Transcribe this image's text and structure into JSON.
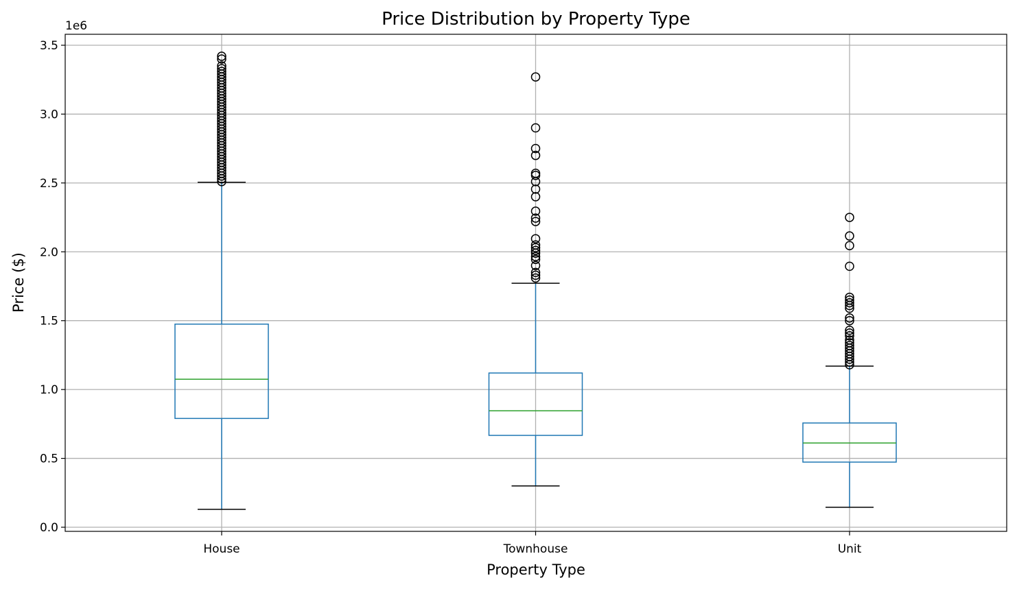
{
  "chart_data": {
    "type": "box",
    "title": "Price Distribution by Property Type",
    "xlabel": "Property Type",
    "ylabel": "Price ($)",
    "y_offset_label": "1e6",
    "ylim": [
      -0.03,
      3.58
    ],
    "yticks": [
      0.0,
      0.5,
      1.0,
      1.5,
      2.0,
      2.5,
      3.0,
      3.5
    ],
    "ytick_labels": [
      "0.0",
      "0.5",
      "1.0",
      "1.5",
      "2.0",
      "2.5",
      "3.0",
      "3.5"
    ],
    "grid": true,
    "colors": {
      "box": "#1f77b4",
      "median": "#2ca02c",
      "caps": "#000000",
      "outliers": "#000000",
      "grid": "#b0b0b0"
    },
    "categories": [
      "House",
      "Townhouse",
      "Unit"
    ],
    "boxes": [
      {
        "category": "House",
        "whisker_low": 0.13,
        "q1": 0.79,
        "median": 1.075,
        "q3": 1.475,
        "whisker_high": 2.505,
        "outliers": [
          2.51,
          2.53,
          2.55,
          2.57,
          2.59,
          2.61,
          2.63,
          2.65,
          2.67,
          2.69,
          2.71,
          2.73,
          2.75,
          2.77,
          2.79,
          2.81,
          2.83,
          2.85,
          2.87,
          2.89,
          2.91,
          2.93,
          2.95,
          2.97,
          2.99,
          3.01,
          3.03,
          3.05,
          3.07,
          3.09,
          3.11,
          3.13,
          3.15,
          3.17,
          3.19,
          3.21,
          3.23,
          3.25,
          3.27,
          3.29,
          3.31,
          3.33,
          3.35,
          3.4,
          3.42
        ]
      },
      {
        "category": "Townhouse",
        "whisker_low": 0.3,
        "q1": 0.667,
        "median": 0.846,
        "q3": 1.12,
        "whisker_high": 1.772,
        "outliers": [
          3.27,
          2.9,
          2.75,
          2.7,
          2.57,
          2.555,
          2.51,
          2.455,
          2.4,
          2.295,
          2.245,
          2.22,
          2.095,
          2.05,
          2.03,
          2.01,
          1.99,
          1.965,
          1.945,
          1.9,
          1.85,
          1.83,
          1.81
        ]
      },
      {
        "category": "Unit",
        "whisker_low": 0.145,
        "q1": 0.473,
        "median": 0.612,
        "q3": 0.757,
        "whisker_high": 1.17,
        "outliers": [
          2.25,
          2.115,
          2.045,
          1.895,
          1.67,
          1.65,
          1.63,
          1.61,
          1.59,
          1.52,
          1.5,
          1.43,
          1.41,
          1.39,
          1.36,
          1.34,
          1.32,
          1.3,
          1.28,
          1.26,
          1.24,
          1.22,
          1.2,
          1.18
        ]
      }
    ]
  }
}
